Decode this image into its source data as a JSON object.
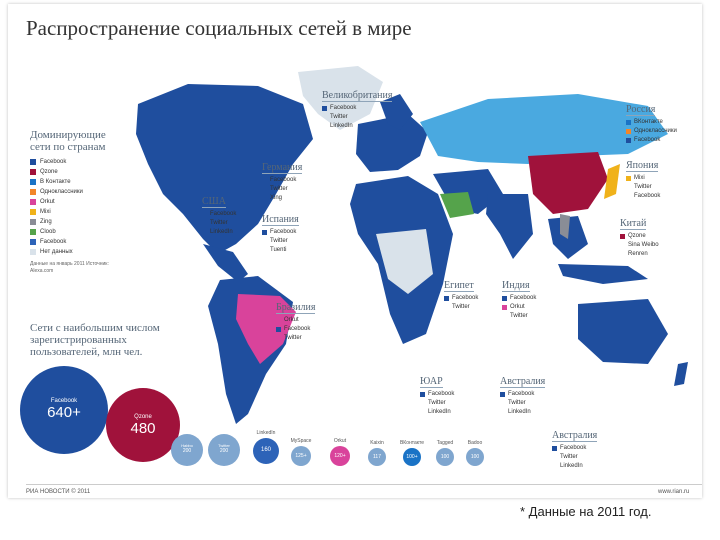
{
  "title": "Распространение социальных сетей в мире",
  "legend": {
    "heading": "Доминирующие сети по странам",
    "colors": {
      "facebook": "#1f4e9e",
      "qzone": "#a0123b",
      "vkontakte": "#1a73c6",
      "odnoklassniki": "#f2862a",
      "orkut": "#d9439b",
      "mixi": "#f0b21a",
      "zing": "#8a8d96",
      "cloob": "#55a34b",
      "nodata": "#d9e2ea",
      "russia": "#4aa9e0"
    },
    "items": [
      {
        "label": "Facebook",
        "color": "#1f4e9e"
      },
      {
        "label": "Qzone",
        "color": "#a0123b"
      },
      {
        "label": "В Контакте",
        "color": "#1a73c6"
      },
      {
        "label": "Одноклассники",
        "color": "#f2862a"
      },
      {
        "label": "Orkut",
        "color": "#d9439b"
      },
      {
        "label": "Mixi",
        "color": "#f0b21a"
      },
      {
        "label": "Zing",
        "color": "#8a8d96"
      },
      {
        "label": "Cloob",
        "color": "#55a34b"
      },
      {
        "label": "Facebook",
        "color": "#2d63b8"
      },
      {
        "label": "Нет данных",
        "color": "#d9e2ea"
      }
    ],
    "note": "Данные на январь 2011 Источник: Alexa.com"
  },
  "bubbles_heading": "Сети с наибольшим числом зарегистрированных пользователей, млн чел.",
  "bubbles": [
    {
      "name": "Facebook",
      "value": "640+",
      "color": "#1f4e9e"
    },
    {
      "name": "Qzone",
      "value": "480",
      "color": "#a0123b"
    },
    {
      "name": "Habbo",
      "value": "200",
      "color": "#7fa6cf"
    },
    {
      "name": "Twitter",
      "value": "200",
      "color": "#7fa6cf"
    },
    {
      "name": "LinkedIn",
      "value": "160",
      "color": "#7fa6cf"
    },
    {
      "name": "MySpace",
      "value": "125+",
      "color": "#7fa6cf"
    },
    {
      "name": "Orkut",
      "value": "120+",
      "color": "#d9439b"
    },
    {
      "name": "Kaixin",
      "value": "117",
      "color": "#7fa6cf"
    },
    {
      "name": "ВКонтакте",
      "value": "100+",
      "color": "#1a73c6"
    },
    {
      "name": "Tagged",
      "value": "100",
      "color": "#7fa6cf"
    },
    {
      "name": "Badoo",
      "value": "100",
      "color": "#7fa6cf"
    }
  ],
  "countries": [
    {
      "name": "Великобритания",
      "items": [
        "Facebook",
        "Twitter",
        "LinkedIn"
      ]
    },
    {
      "name": "Россия",
      "items": [
        "ВКонтакте",
        "Одноклассники",
        "Facebook"
      ]
    },
    {
      "name": "Германия",
      "items": [
        "Facebook",
        "Twitter",
        "Xing"
      ]
    },
    {
      "name": "США",
      "items": [
        "Facebook",
        "Twitter",
        "LinkedIn"
      ]
    },
    {
      "name": "Испания",
      "items": [
        "Facebook",
        "Twitter",
        "Tuenti"
      ]
    },
    {
      "name": "Япония",
      "items": [
        "Mixi",
        "Twitter",
        "Facebook"
      ]
    },
    {
      "name": "Китай",
      "items": [
        "Qzone",
        "Sina Weibo",
        "Renren"
      ]
    },
    {
      "name": "Бразилия",
      "items": [
        "Orkut",
        "Facebook",
        "Twitter"
      ]
    },
    {
      "name": "Египет",
      "items": [
        "Facebook",
        "Twitter"
      ]
    },
    {
      "name": "Индия",
      "items": [
        "Facebook",
        "Orkut",
        "Twitter"
      ]
    },
    {
      "name": "ЮАР",
      "items": [
        "Facebook",
        "Twitter",
        "LinkedIn"
      ]
    },
    {
      "name": "Австралия",
      "items": [
        "Facebook",
        "Twitter",
        "LinkedIn"
      ]
    },
    {
      "name": "Австралия",
      "items": [
        "Facebook",
        "Twitter",
        "LinkedIn"
      ]
    }
  ],
  "footer": {
    "left": "РИА НОВОСТИ © 2011",
    "right": "www.rian.ru"
  },
  "caption": "* Данные на 2011 год."
}
